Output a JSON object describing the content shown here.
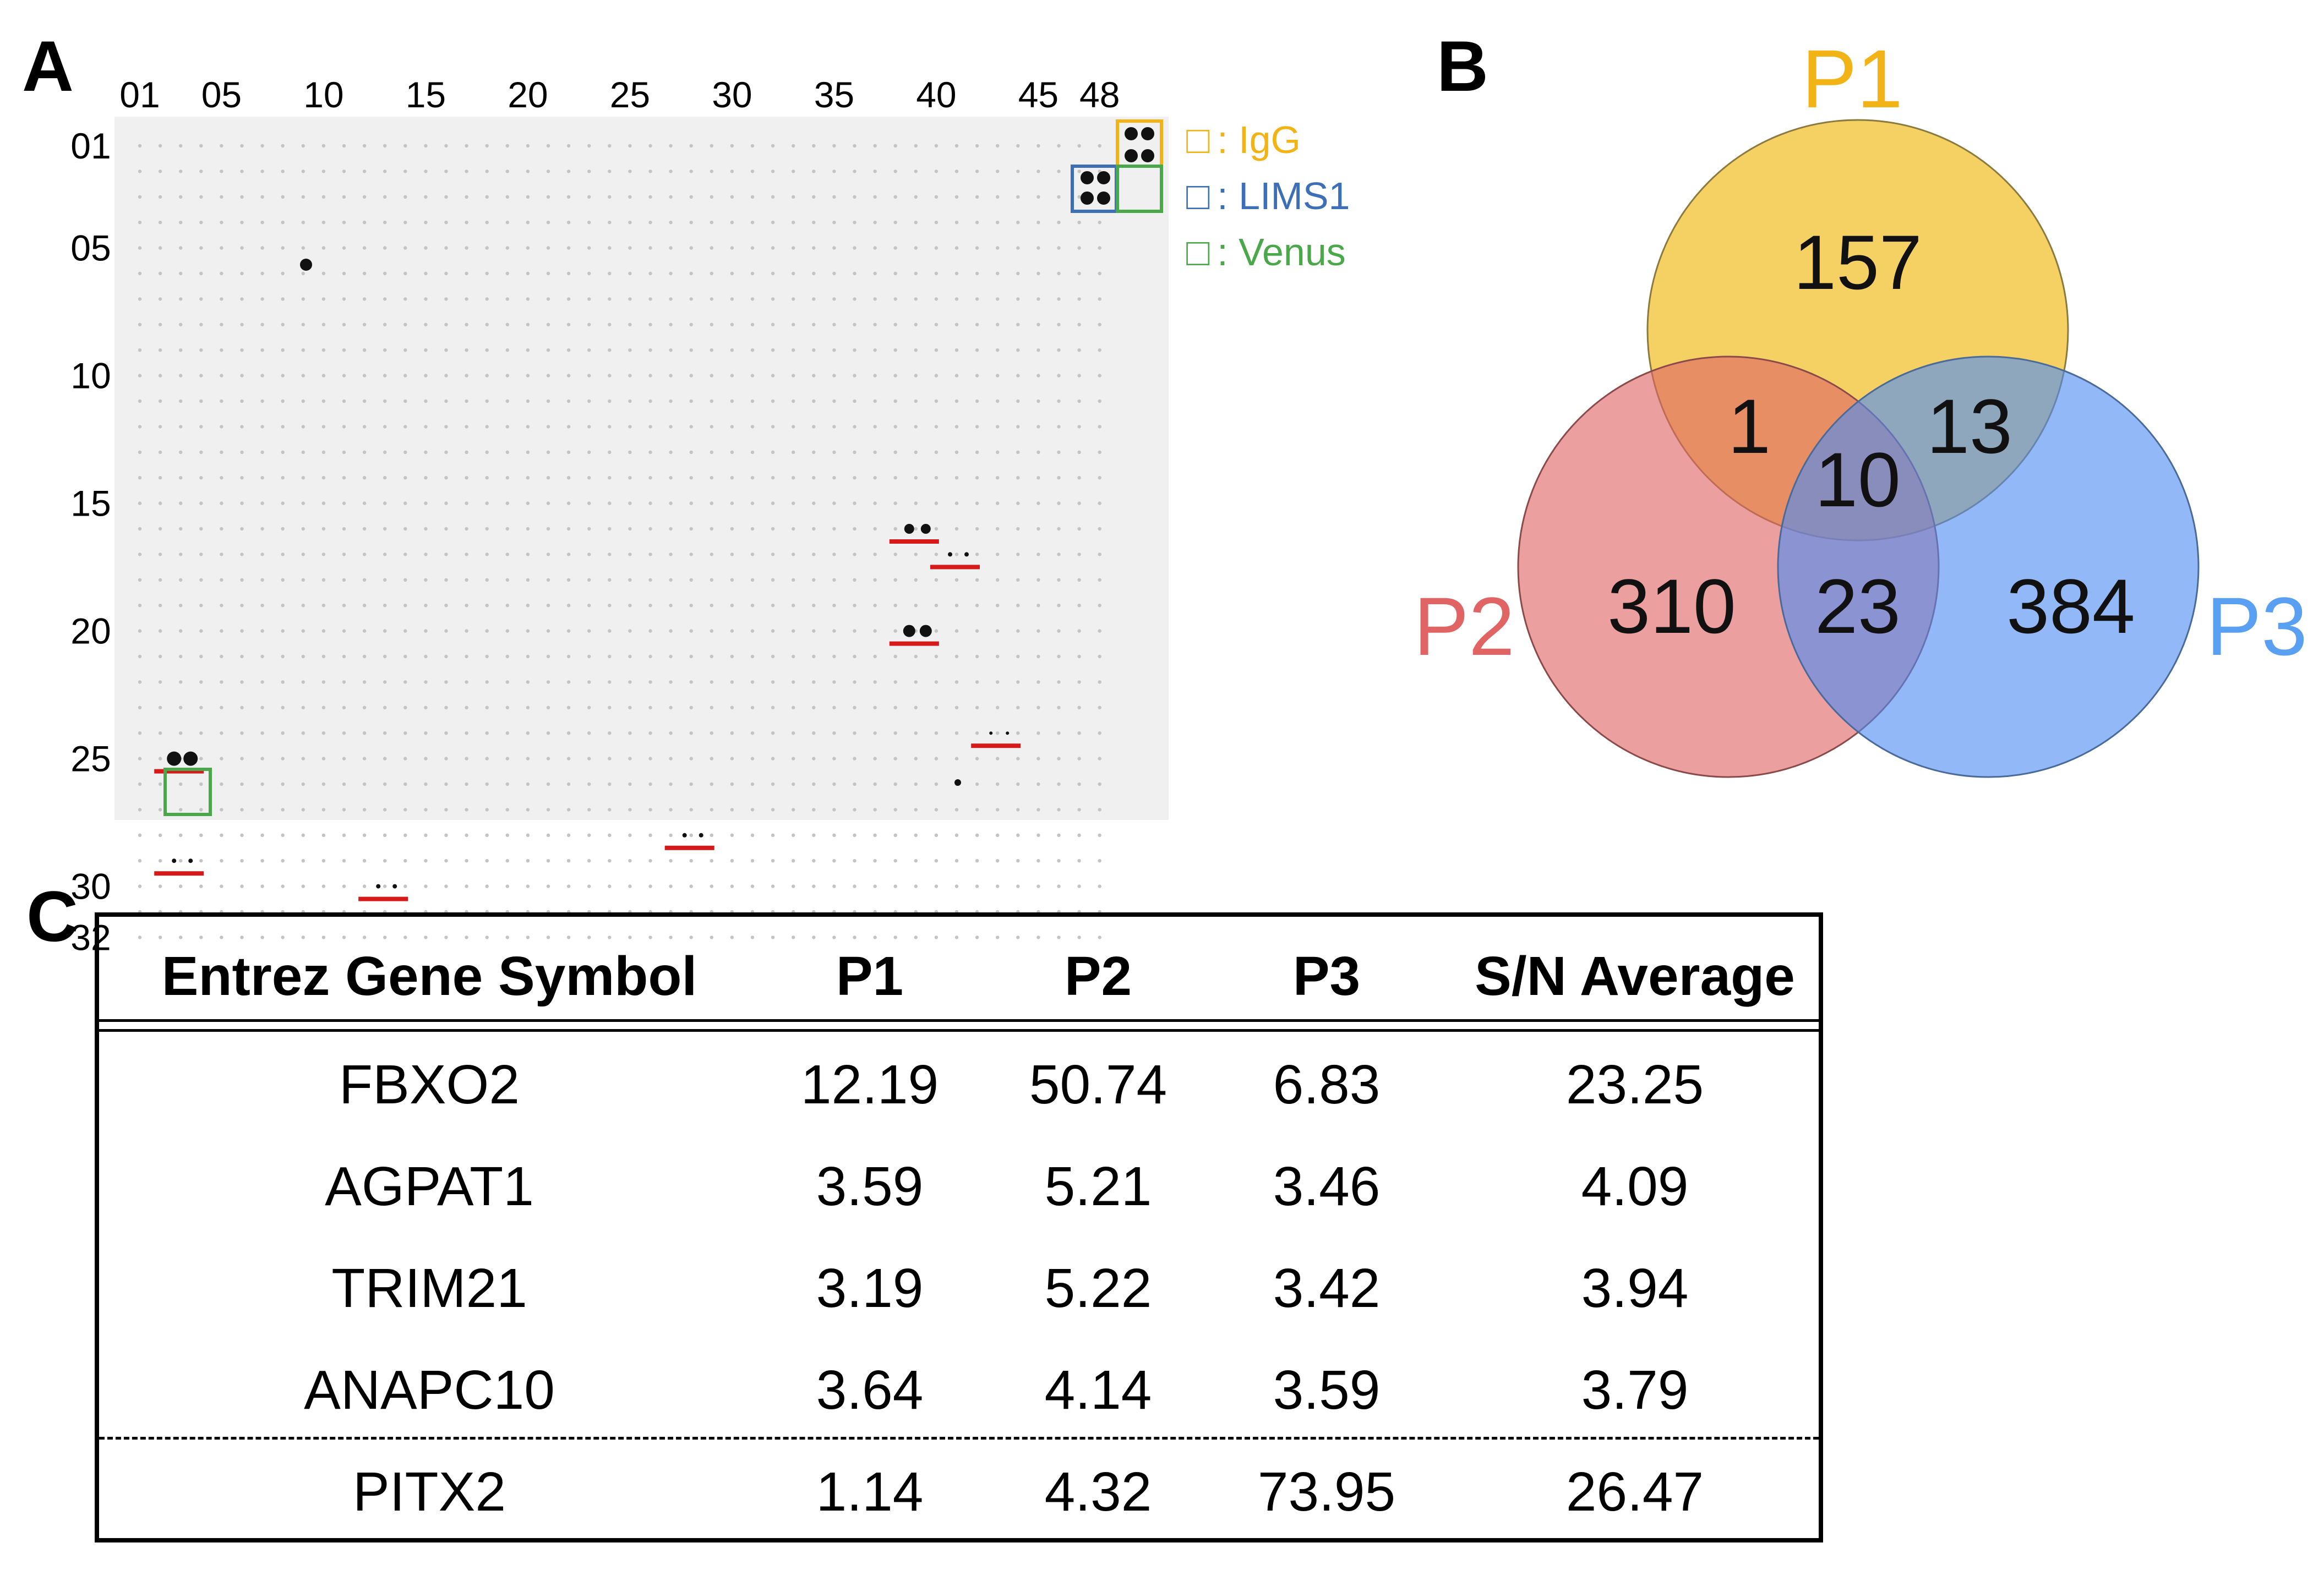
{
  "panels": {
    "a": "A",
    "b": "B",
    "c": "C"
  },
  "array": {
    "col_ticks": [
      "01",
      "05",
      "10",
      "15",
      "20",
      "25",
      "30",
      "35",
      "40",
      "45",
      "48"
    ],
    "row_ticks": [
      "01",
      "05",
      "10",
      "15",
      "20",
      "25",
      "30",
      "32"
    ],
    "legend": [
      {
        "symbol": "□",
        "label": ": IgG",
        "color": "#f2b316"
      },
      {
        "symbol": "□",
        "label": ": LIMS1",
        "color": "#3c6fb6"
      },
      {
        "symbol": "□",
        "label": ": Venus",
        "color": "#4aa84a"
      }
    ]
  },
  "venn": {
    "sets": [
      {
        "name": "P1",
        "color": "#f2c230",
        "label_color": "#f2b316"
      },
      {
        "name": "P2",
        "color": "#e06464",
        "label_color": "#e06464"
      },
      {
        "name": "P3",
        "color": "#4f8df2",
        "label_color": "#5aa0f2"
      }
    ],
    "regions": {
      "p1_only": "157",
      "p2_only": "310",
      "p3_only": "384",
      "p1_p2": "1",
      "p1_p3": "13",
      "p2_p3": "23",
      "all": "10"
    }
  },
  "table": {
    "headers": [
      "Entrez Gene Symbol",
      "P1",
      "P2",
      "P3",
      "S/N Average"
    ],
    "rows": [
      [
        "FBXO2",
        "12.19",
        "50.74",
        "6.83",
        "23.25"
      ],
      [
        "AGPAT1",
        "3.59",
        "5.21",
        "3.46",
        "4.09"
      ],
      [
        "TRIM21",
        "3.19",
        "5.22",
        "3.42",
        "3.94"
      ],
      [
        "ANAPC10",
        "3.64",
        "4.14",
        "3.59",
        "3.79"
      ],
      [
        "PITX2",
        "1.14",
        "4.32",
        "73.95",
        "26.47"
      ]
    ]
  }
}
